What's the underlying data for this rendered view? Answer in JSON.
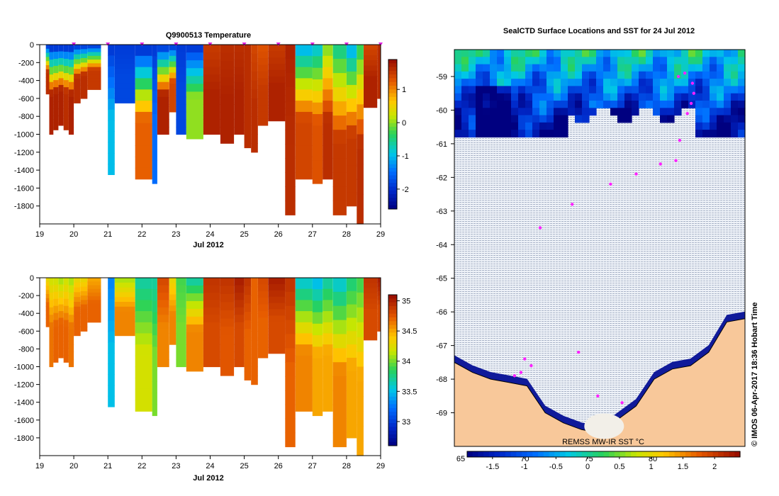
{
  "chart_data": [
    {
      "type": "heatmap",
      "title": "Q9900513  Temperature",
      "xlabel": "Jul 2012",
      "x_ticks": [
        "19",
        "20",
        "21",
        "22",
        "23",
        "24",
        "25",
        "26",
        "27",
        "28",
        "29"
      ],
      "xlim": [
        19,
        29
      ],
      "ylim": [
        -2000,
        0
      ],
      "y_ticks": [
        "0",
        "-200",
        "-400",
        "-600",
        "-800",
        "-1000",
        "-1200",
        "-1400",
        "-1600",
        "-1800"
      ],
      "colorbar_ticks": [
        "1",
        "0",
        "-1",
        "-2"
      ],
      "colorbar_range": [
        -2.6,
        1.9
      ],
      "profile_markers": [
        20,
        21,
        22,
        23,
        24,
        25,
        26,
        27,
        28,
        29
      ],
      "profiles": [
        {
          "x0": 19.18,
          "x1": 19.28,
          "depth": 550,
          "surface": -1.8,
          "deep": 1.6
        },
        {
          "x0": 19.28,
          "x1": 19.4,
          "depth": 1000,
          "surface": -1.9,
          "deep": 1.7
        },
        {
          "x0": 19.4,
          "x1": 19.55,
          "depth": 950,
          "surface": -1.9,
          "deep": 1.7
        },
        {
          "x0": 19.55,
          "x1": 19.7,
          "depth": 900,
          "surface": -1.9,
          "deep": 1.7
        },
        {
          "x0": 19.7,
          "x1": 19.85,
          "depth": 950,
          "surface": -1.9,
          "deep": 1.6
        },
        {
          "x0": 19.85,
          "x1": 20.0,
          "depth": 1000,
          "surface": -1.9,
          "deep": 1.7
        },
        {
          "x0": 20.0,
          "x1": 20.2,
          "depth": 650,
          "surface": -1.8,
          "deep": 1.6
        },
        {
          "x0": 20.2,
          "x1": 20.4,
          "depth": 600,
          "surface": -1.8,
          "deep": 1.6
        },
        {
          "x0": 20.4,
          "x1": 20.8,
          "depth": 500,
          "surface": -1.8,
          "deep": 1.5
        },
        {
          "x0": 21.0,
          "x1": 21.2,
          "depth": 1450,
          "surface": -1.9,
          "deep": -1.0
        },
        {
          "x0": 21.2,
          "x1": 21.8,
          "depth": 650,
          "surface": -1.9,
          "deep": -1.8
        },
        {
          "x0": 21.8,
          "x1": 22.3,
          "depth": 1500,
          "surface": -1.9,
          "deep": 1.2
        },
        {
          "x0": 22.3,
          "x1": 22.45,
          "depth": 1550,
          "surface": -1.9,
          "deep": -1.5
        },
        {
          "x0": 22.45,
          "x1": 22.8,
          "depth": 1000,
          "surface": -1.8,
          "deep": 1.7
        },
        {
          "x0": 22.8,
          "x1": 23.0,
          "depth": 750,
          "surface": -1.8,
          "deep": 1.4
        },
        {
          "x0": 23.0,
          "x1": 23.3,
          "depth": 1000,
          "surface": -1.9,
          "deep": -1.8
        },
        {
          "x0": 23.3,
          "x1": 23.8,
          "depth": 1050,
          "surface": -1.9,
          "deep": 0.0
        },
        {
          "x0": 23.8,
          "x1": 24.3,
          "depth": 1000,
          "surface": 1.5,
          "deep": 1.7
        },
        {
          "x0": 24.3,
          "x1": 24.7,
          "depth": 1100,
          "surface": 1.6,
          "deep": 1.7
        },
        {
          "x0": 24.7,
          "x1": 25.0,
          "depth": 1000,
          "surface": 1.6,
          "deep": 1.7
        },
        {
          "x0": 25.0,
          "x1": 25.2,
          "depth": 1150,
          "surface": 1.6,
          "deep": 1.6
        },
        {
          "x0": 25.2,
          "x1": 25.4,
          "depth": 1200,
          "surface": 1.4,
          "deep": 1.6
        },
        {
          "x0": 25.4,
          "x1": 25.7,
          "depth": 900,
          "surface": 1.3,
          "deep": 1.5
        },
        {
          "x0": 25.7,
          "x1": 26.2,
          "depth": 850,
          "surface": 1.5,
          "deep": 1.7
        },
        {
          "x0": 26.2,
          "x1": 26.5,
          "depth": 1900,
          "surface": 1.7,
          "deep": 1.6
        },
        {
          "x0": 26.5,
          "x1": 27.0,
          "depth": 1500,
          "surface": -1.0,
          "deep": 1.4
        },
        {
          "x0": 27.0,
          "x1": 27.3,
          "depth": 1550,
          "surface": -0.8,
          "deep": 1.3
        },
        {
          "x0": 27.3,
          "x1": 27.6,
          "depth": 1500,
          "surface": 0.0,
          "deep": 1.6
        },
        {
          "x0": 27.6,
          "x1": 28.0,
          "depth": 1900,
          "surface": -0.5,
          "deep": 1.5
        },
        {
          "x0": 28.0,
          "x1": 28.3,
          "depth": 1800,
          "surface": -1.0,
          "deep": 1.5
        },
        {
          "x0": 28.3,
          "x1": 28.5,
          "depth": 2000,
          "surface": -0.3,
          "deep": 1.6
        },
        {
          "x0": 28.5,
          "x1": 28.9,
          "depth": 700,
          "surface": 1.4,
          "deep": 1.7
        },
        {
          "x0": 28.9,
          "x1": 29.0,
          "depth": 600,
          "surface": 1.6,
          "deep": 1.6
        }
      ]
    },
    {
      "type": "heatmap",
      "title": "",
      "xlabel": "Jul 2012",
      "x_ticks": [
        "19",
        "20",
        "21",
        "22",
        "23",
        "24",
        "25",
        "26",
        "27",
        "28",
        "29"
      ],
      "xlim": [
        19,
        29
      ],
      "ylim": [
        -2000,
        0
      ],
      "y_ticks": [
        "0",
        "-200",
        "-400",
        "-600",
        "-800",
        "-1000",
        "-1200",
        "-1400",
        "-1600",
        "-1800"
      ],
      "colorbar_ticks": [
        "35",
        "34.5",
        "34",
        "33.5",
        "33"
      ],
      "colorbar_range": [
        32.6,
        35.1
      ],
      "profiles": [
        {
          "x0": 19.18,
          "x1": 19.28,
          "depth": 550,
          "surface": 34.3,
          "deep": 34.7
        },
        {
          "x0": 19.28,
          "x1": 19.4,
          "depth": 1000,
          "surface": 34.2,
          "deep": 34.65
        },
        {
          "x0": 19.4,
          "x1": 19.55,
          "depth": 950,
          "surface": 34.2,
          "deep": 34.7
        },
        {
          "x0": 19.55,
          "x1": 19.7,
          "depth": 900,
          "surface": 34.1,
          "deep": 34.7
        },
        {
          "x0": 19.7,
          "x1": 19.85,
          "depth": 950,
          "surface": 34.2,
          "deep": 34.7
        },
        {
          "x0": 19.85,
          "x1": 20.0,
          "depth": 1000,
          "surface": 34.1,
          "deep": 34.65
        },
        {
          "x0": 20.0,
          "x1": 20.2,
          "depth": 650,
          "surface": 34.3,
          "deep": 34.7
        },
        {
          "x0": 20.2,
          "x1": 20.4,
          "depth": 600,
          "surface": 34.3,
          "deep": 34.7
        },
        {
          "x0": 20.4,
          "x1": 20.8,
          "depth": 500,
          "surface": 34.5,
          "deep": 34.7
        },
        {
          "x0": 21.0,
          "x1": 21.2,
          "depth": 1450,
          "surface": 33.3,
          "deep": 33.5
        },
        {
          "x0": 21.2,
          "x1": 21.8,
          "depth": 650,
          "surface": 34.1,
          "deep": 34.6
        },
        {
          "x0": 21.8,
          "x1": 22.3,
          "depth": 1500,
          "surface": 33.7,
          "deep": 34.2
        },
        {
          "x0": 22.3,
          "x1": 22.45,
          "depth": 1550,
          "surface": 33.7,
          "deep": 34.0
        },
        {
          "x0": 22.45,
          "x1": 22.8,
          "depth": 1000,
          "surface": 34.8,
          "deep": 34.6
        },
        {
          "x0": 22.8,
          "x1": 23.0,
          "depth": 750,
          "surface": 34.3,
          "deep": 34.6
        },
        {
          "x0": 23.0,
          "x1": 23.3,
          "depth": 1000,
          "surface": 33.9,
          "deep": 34.0
        },
        {
          "x0": 23.3,
          "x1": 23.8,
          "depth": 1050,
          "surface": 33.7,
          "deep": 34.6
        },
        {
          "x0": 23.8,
          "x1": 24.3,
          "depth": 1000,
          "surface": 34.9,
          "deep": 34.8
        },
        {
          "x0": 24.3,
          "x1": 24.7,
          "depth": 1100,
          "surface": 34.9,
          "deep": 34.75
        },
        {
          "x0": 24.7,
          "x1": 25.0,
          "depth": 1000,
          "surface": 35.0,
          "deep": 34.8
        },
        {
          "x0": 25.0,
          "x1": 25.2,
          "depth": 1150,
          "surface": 34.9,
          "deep": 34.7
        },
        {
          "x0": 25.2,
          "x1": 25.4,
          "depth": 1200,
          "surface": 34.7,
          "deep": 34.7
        },
        {
          "x0": 25.4,
          "x1": 25.7,
          "depth": 900,
          "surface": 34.8,
          "deep": 34.7
        },
        {
          "x0": 25.7,
          "x1": 26.2,
          "depth": 850,
          "surface": 35.0,
          "deep": 34.8
        },
        {
          "x0": 26.2,
          "x1": 26.5,
          "depth": 1900,
          "surface": 34.9,
          "deep": 34.7
        },
        {
          "x0": 26.5,
          "x1": 27.0,
          "depth": 1500,
          "surface": 33.6,
          "deep": 34.6
        },
        {
          "x0": 27.0,
          "x1": 27.3,
          "depth": 1550,
          "surface": 33.5,
          "deep": 34.5
        },
        {
          "x0": 27.3,
          "x1": 27.6,
          "depth": 1500,
          "surface": 33.7,
          "deep": 34.5
        },
        {
          "x0": 27.6,
          "x1": 28.0,
          "depth": 1900,
          "surface": 33.6,
          "deep": 34.6
        },
        {
          "x0": 28.0,
          "x1": 28.3,
          "depth": 1800,
          "surface": 33.8,
          "deep": 34.5
        },
        {
          "x0": 28.3,
          "x1": 28.5,
          "depth": 2000,
          "surface": 33.9,
          "deep": 34.5
        },
        {
          "x0": 28.5,
          "x1": 28.9,
          "depth": 700,
          "surface": 34.9,
          "deep": 34.8
        },
        {
          "x0": 28.9,
          "x1": 29.0,
          "depth": 600,
          "surface": 35.0,
          "deep": 34.8
        }
      ]
    },
    {
      "type": "heatmap",
      "title": "SealCTD Surface Locations and SST for 24 Jul 2012",
      "ylim": [
        -70,
        -58.2
      ],
      "y_ticks": [
        "-59",
        "-60",
        "-61",
        "-62",
        "-63",
        "-64",
        "-65",
        "-66",
        "-67",
        "-68",
        "-69"
      ],
      "lon_labels": [
        "65",
        "70",
        "75",
        "80"
      ],
      "colorbar_ticks": [
        "-1.5",
        "-1",
        "-0.5",
        "0",
        "0.5",
        "1",
        "1.5",
        "2"
      ],
      "colorbar_range": [
        -1.9,
        2.4
      ],
      "colorbar_label": "REMSS MW-IR SST °C",
      "side_label": "© IMOS 06-Apr-2017 18:36 Hobart Time",
      "ice_edge_lat": -60.8,
      "coast_lat_at": [
        -67.5,
        -67.8,
        -68.0,
        -68.1,
        -68.2,
        -69.0,
        -69.3,
        -69.5,
        -69.6,
        -69.2,
        -68.8,
        -68.0,
        -67.7,
        -67.6,
        -67.2,
        -66.3,
        -66.2
      ],
      "track_points": [
        {
          "lat": -59.0,
          "lon": 81.8
        },
        {
          "lat": -58.9,
          "lon": 82.3
        },
        {
          "lat": -59.2,
          "lon": 82.9
        },
        {
          "lat": -59.5,
          "lon": 83.0
        },
        {
          "lat": -59.8,
          "lon": 82.8
        },
        {
          "lat": -60.1,
          "lon": 82.5
        },
        {
          "lat": -60.9,
          "lon": 81.9
        },
        {
          "lat": -61.5,
          "lon": 81.6
        },
        {
          "lat": -61.6,
          "lon": 80.4
        },
        {
          "lat": -61.9,
          "lon": 78.5
        },
        {
          "lat": -62.2,
          "lon": 76.5
        },
        {
          "lat": -62.8,
          "lon": 73.5
        },
        {
          "lat": -63.5,
          "lon": 71.0
        },
        {
          "lat": -67.4,
          "lon": 69.8
        },
        {
          "lat": -67.6,
          "lon": 70.3
        },
        {
          "lat": -67.8,
          "lon": 69.5
        },
        {
          "lat": -67.9,
          "lon": 69.0
        },
        {
          "lat": -67.2,
          "lon": 74.0
        },
        {
          "lat": -68.5,
          "lon": 75.5
        },
        {
          "lat": -68.7,
          "lon": 77.4
        }
      ]
    }
  ]
}
